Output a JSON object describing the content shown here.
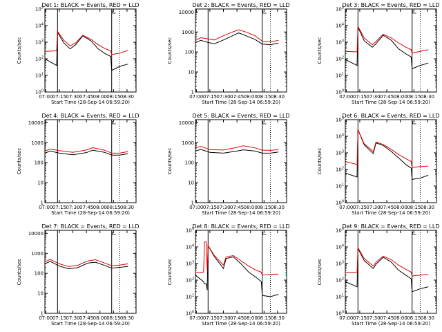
{
  "chart_data": [
    {
      "type": "line",
      "title": "Det 1: BLACK = Events, RED = LLD",
      "xlabel": "Start Time (28-Sep-14 06:59:20)",
      "ylabel": "Counts/sec",
      "xticks": [
        "07:00",
        "07:15",
        "07:30",
        "07:45",
        "08:00",
        "08:15",
        "08:30"
      ],
      "yticks": [
        "10^0",
        "10^1",
        "10^2",
        "10^3",
        "10^4",
        "10^5"
      ],
      "ylim_log10": [
        0,
        5
      ],
      "vlines": [
        "07:13",
        "08:13",
        "08:22"
      ],
      "series": [
        {
          "color": "#000000",
          "x": [
            "06:59",
            "07:12",
            "07:13",
            "07:20",
            "07:27",
            "07:33",
            "07:41",
            "07:50",
            "07:58",
            "08:06",
            "08:12",
            "08:13",
            "08:22",
            "08:31"
          ],
          "y": [
            100,
            40,
            4000,
            900,
            400,
            700,
            2400,
            1200,
            400,
            200,
            140,
            20,
            35,
            48
          ]
        },
        {
          "color": "#e00000",
          "x": [
            "06:59",
            "07:12",
            "07:13",
            "07:20",
            "07:27",
            "07:33",
            "07:41",
            "07:50",
            "07:58",
            "08:06",
            "08:12",
            "08:13",
            "08:22",
            "08:31"
          ],
          "y": [
            280,
            300,
            4500,
            1300,
            600,
            900,
            2600,
            1500,
            700,
            400,
            300,
            180,
            220,
            320
          ]
        }
      ]
    },
    {
      "type": "line",
      "title": "Det 2: BLACK = Events, RED = LLD",
      "xlabel": "Start Time (28-Sep-14 06:59:20)",
      "ylabel": "Counts/sec",
      "xticks": [
        "07:00",
        "07:15",
        "07:30",
        "07:45",
        "08:00",
        "08:15",
        "08:30"
      ],
      "yticks": [
        "1",
        "10",
        "100",
        "1000",
        "10000"
      ],
      "ylim_log10": [
        0,
        4.15
      ],
      "vlines": [
        "07:13",
        "08:13",
        "08:22"
      ],
      "series": [
        {
          "color": "#000000",
          "x": [
            "06:59",
            "07:05",
            "07:13",
            "07:20",
            "07:30",
            "07:40",
            "07:47",
            "07:55",
            "08:05",
            "08:13",
            "08:22",
            "08:31"
          ],
          "y": [
            300,
            380,
            300,
            260,
            400,
            650,
            900,
            650,
            420,
            250,
            230,
            280
          ]
        },
        {
          "color": "#e00000",
          "x": [
            "06:59",
            "07:05",
            "07:13",
            "07:20",
            "07:30",
            "07:40",
            "07:47",
            "07:55",
            "08:05",
            "08:13",
            "08:22",
            "08:31"
          ],
          "y": [
            380,
            520,
            450,
            400,
            650,
            1000,
            1300,
            1000,
            650,
            350,
            320,
            380
          ]
        }
      ]
    },
    {
      "type": "line",
      "title": "Det 3: BLACK = Events, RED = LLD",
      "xlabel": "Start Time (28-Sep-14 06:59:20)",
      "ylabel": "Counts/sec",
      "xticks": [
        "07:00",
        "07:15",
        "07:30",
        "07:45",
        "08:00",
        "08:15",
        "08:30"
      ],
      "yticks": [
        "10^0",
        "10^1",
        "10^2",
        "10^3",
        "10^4",
        "10^5"
      ],
      "ylim_log10": [
        0,
        5
      ],
      "vlines": [
        "07:13",
        "08:13",
        "08:22"
      ],
      "series": [
        {
          "color": "#000000",
          "x": [
            "06:59",
            "07:12",
            "07:13",
            "07:20",
            "07:29",
            "07:33",
            "07:41",
            "07:50",
            "07:58",
            "08:06",
            "08:12",
            "08:13",
            "08:22",
            "08:31"
          ],
          "y": [
            90,
            40,
            8000,
            1200,
            500,
            800,
            2600,
            1300,
            400,
            200,
            130,
            25,
            40,
            55
          ]
        },
        {
          "color": "#e00000",
          "x": [
            "06:59",
            "07:12",
            "07:13",
            "07:20",
            "07:29",
            "07:33",
            "07:41",
            "07:50",
            "07:58",
            "08:06",
            "08:12",
            "08:13",
            "08:22",
            "08:31"
          ],
          "y": [
            280,
            260,
            9000,
            1800,
            700,
            1100,
            3000,
            1800,
            900,
            500,
            350,
            220,
            280,
            350
          ]
        }
      ]
    },
    {
      "type": "line",
      "title": "Det 4: BLACK = Events, RED = LLD",
      "xlabel": "Start Time (28-Sep-14 06:59:20)",
      "ylabel": "Counts/sec",
      "xticks": [
        "07:00",
        "07:15",
        "07:30",
        "07:45",
        "08:00",
        "08:15",
        "08:30"
      ],
      "yticks": [
        "1",
        "10",
        "100",
        "1000",
        "10000"
      ],
      "ylim_log10": [
        0,
        4.15
      ],
      "vlines": [
        "07:13",
        "08:13",
        "08:22"
      ],
      "series": [
        {
          "color": "#000000",
          "x": [
            "06:59",
            "07:05",
            "07:15",
            "07:30",
            "07:45",
            "07:52",
            "08:05",
            "08:13",
            "08:22",
            "08:31"
          ],
          "y": [
            300,
            380,
            300,
            250,
            320,
            420,
            330,
            240,
            240,
            280
          ]
        },
        {
          "color": "#e00000",
          "x": [
            "06:59",
            "07:05",
            "07:15",
            "07:30",
            "07:45",
            "07:52",
            "08:05",
            "08:13",
            "08:22",
            "08:31"
          ],
          "y": [
            380,
            480,
            400,
            330,
            430,
            560,
            420,
            300,
            300,
            360
          ]
        }
      ]
    },
    {
      "type": "line",
      "title": "Det 5: BLACK = Events, RED = LLD",
      "xlabel": "Start Time (28-Sep-14 06:59:20)",
      "ylabel": "Counts/sec",
      "xticks": [
        "07:00",
        "07:15",
        "07:30",
        "07:45",
        "08:00",
        "08:15",
        "08:30"
      ],
      "yticks": [
        "1",
        "10",
        "100",
        "1000",
        "10000"
      ],
      "ylim_log10": [
        0,
        4.15
      ],
      "vlines": [
        "07:13",
        "08:13",
        "08:22"
      ],
      "series": [
        {
          "color": "#000000",
          "x": [
            "06:59",
            "07:05",
            "07:15",
            "07:30",
            "07:45",
            "07:52",
            "08:05",
            "08:13",
            "08:22",
            "08:31"
          ],
          "y": [
            380,
            460,
            330,
            300,
            380,
            440,
            380,
            300,
            300,
            340
          ]
        },
        {
          "color": "#e00000",
          "x": [
            "06:59",
            "07:05",
            "07:15",
            "07:30",
            "07:45",
            "07:52",
            "08:05",
            "08:13",
            "08:22",
            "08:31"
          ],
          "y": [
            550,
            650,
            450,
            430,
            580,
            700,
            550,
            420,
            410,
            450
          ]
        }
      ]
    },
    {
      "type": "line",
      "title": "Det 6: BLACK = Events, RED = LLD",
      "xlabel": "Start Time (28-Sep-14 06:59:20)",
      "ylabel": "Counts/sec",
      "xticks": [
        "07:00",
        "07:15",
        "07:30",
        "07:45",
        "08:00",
        "08:15",
        "08:30"
      ],
      "yticks": [
        "10^0",
        "10^1",
        "10^2",
        "10^3",
        "10^4",
        "10^5"
      ],
      "ylim_log10": [
        0,
        5
      ],
      "vlines": [
        "07:13",
        "08:13",
        "08:22"
      ],
      "series": [
        {
          "color": "#000000",
          "x": [
            "06:59",
            "07:12",
            "07:13",
            "07:20",
            "07:30",
            "07:33",
            "07:41",
            "07:50",
            "07:58",
            "08:06",
            "08:12",
            "08:13",
            "08:22",
            "08:31"
          ],
          "y": [
            60,
            35,
            25000,
            3000,
            900,
            4000,
            2800,
            1200,
            500,
            200,
            120,
            25,
            30,
            45
          ]
        },
        {
          "color": "#e00000",
          "x": [
            "06:59",
            "07:12",
            "07:13",
            "07:20",
            "07:30",
            "07:33",
            "07:41",
            "07:50",
            "07:58",
            "08:06",
            "08:12",
            "08:13",
            "08:22",
            "08:31"
          ],
          "y": [
            300,
            200,
            25000,
            3500,
            1200,
            4500,
            3200,
            1600,
            800,
            450,
            300,
            130,
            150,
            160
          ]
        }
      ]
    },
    {
      "type": "line",
      "title": "Det 7: BLACK = Events, RED = LLD",
      "xlabel": "Start Time (28-Sep-14 06:59:20)",
      "ylabel": "Counts/sec",
      "xticks": [
        "07:00",
        "07:15",
        "07:30",
        "07:45",
        "08:00",
        "08:15",
        "08:30"
      ],
      "yticks": [
        "1",
        "10",
        "100",
        "1000",
        "10000"
      ],
      "ylim_log10": [
        0,
        4.15
      ],
      "vlines": [
        "07:13",
        "08:13",
        "08:22"
      ],
      "series": [
        {
          "color": "#000000",
          "x": [
            "06:59",
            "07:05",
            "07:15",
            "07:25",
            "07:35",
            "07:47",
            "07:55",
            "08:05",
            "08:13",
            "08:22",
            "08:31"
          ],
          "y": [
            300,
            400,
            230,
            170,
            190,
            330,
            360,
            250,
            180,
            200,
            220
          ]
        },
        {
          "color": "#e00000",
          "x": [
            "06:59",
            "07:05",
            "07:15",
            "07:25",
            "07:35",
            "07:47",
            "07:55",
            "08:05",
            "08:13",
            "08:22",
            "08:31"
          ],
          "y": [
            380,
            500,
            300,
            220,
            250,
            420,
            480,
            330,
            240,
            260,
            300
          ]
        }
      ]
    },
    {
      "type": "line",
      "title": "Det 8: BLACK = Events, RED = LLD",
      "xlabel": "Start Time (28-Sep-14 06:59:20)",
      "ylabel": "Counts/sec",
      "xticks": [
        "07:00",
        "07:15",
        "07:30",
        "07:45",
        "08:00",
        "08:15",
        "08:30"
      ],
      "yticks": [
        "10^0",
        "10^1",
        "10^2",
        "10^3",
        "10^4",
        "10^5"
      ],
      "ylim_log10": [
        0,
        5
      ],
      "vlines": [
        "07:13",
        "08:13",
        "08:22"
      ],
      "series": [
        {
          "color": "#000000",
          "x": [
            "06:59",
            "07:08",
            "07:09",
            "07:11",
            "07:12",
            "07:13",
            "07:20",
            "07:30",
            "07:33",
            "07:41",
            "07:50",
            "07:58",
            "08:06",
            "08:12",
            "08:13",
            "08:22",
            "08:31"
          ],
          "y": [
            200,
            80,
            60,
            60,
            25,
            12000,
            2600,
            500,
            2000,
            2500,
            900,
            300,
            150,
            80,
            12,
            10,
            14
          ]
        },
        {
          "color": "#e00000",
          "x": [
            "06:59",
            "07:08",
            "07:09",
            "07:11",
            "07:12",
            "07:13",
            "07:20",
            "07:30",
            "07:33",
            "07:41",
            "07:50",
            "07:58",
            "08:06",
            "08:12",
            "08:13",
            "08:22",
            "08:31"
          ],
          "y": [
            300,
            300,
            20000,
            20000,
            400,
            12000,
            3000,
            800,
            2500,
            3000,
            1400,
            700,
            400,
            300,
            200,
            220,
            230
          ]
        }
      ]
    },
    {
      "type": "line",
      "title": "Det 9: BLACK = Events, RED = LLD",
      "xlabel": "Start Time (28-Sep-14 06:59:20)",
      "ylabel": "Counts/sec",
      "xticks": [
        "07:00",
        "07:15",
        "07:30",
        "07:45",
        "08:00",
        "08:15",
        "08:30"
      ],
      "yticks": [
        "10^0",
        "10^1",
        "10^2",
        "10^3",
        "10^4",
        "10^5"
      ],
      "ylim_log10": [
        0,
        5
      ],
      "vlines": [
        "07:13",
        "08:13",
        "08:22"
      ],
      "series": [
        {
          "color": "#000000",
          "x": [
            "06:59",
            "07:12",
            "07:13",
            "07:20",
            "07:30",
            "07:33",
            "07:41",
            "07:50",
            "07:58",
            "08:06",
            "08:12",
            "08:13",
            "08:22",
            "08:31"
          ],
          "y": [
            80,
            40,
            8000,
            1500,
            500,
            900,
            2400,
            1200,
            400,
            200,
            120,
            20,
            30,
            40
          ]
        },
        {
          "color": "#e00000",
          "x": [
            "06:59",
            "07:12",
            "07:13",
            "07:20",
            "07:30",
            "07:33",
            "07:41",
            "07:50",
            "07:58",
            "08:06",
            "08:12",
            "08:13",
            "08:22",
            "08:31"
          ],
          "y": [
            300,
            300,
            9000,
            2000,
            700,
            1200,
            2800,
            1700,
            800,
            450,
            300,
            180,
            200,
            220
          ]
        }
      ]
    }
  ]
}
